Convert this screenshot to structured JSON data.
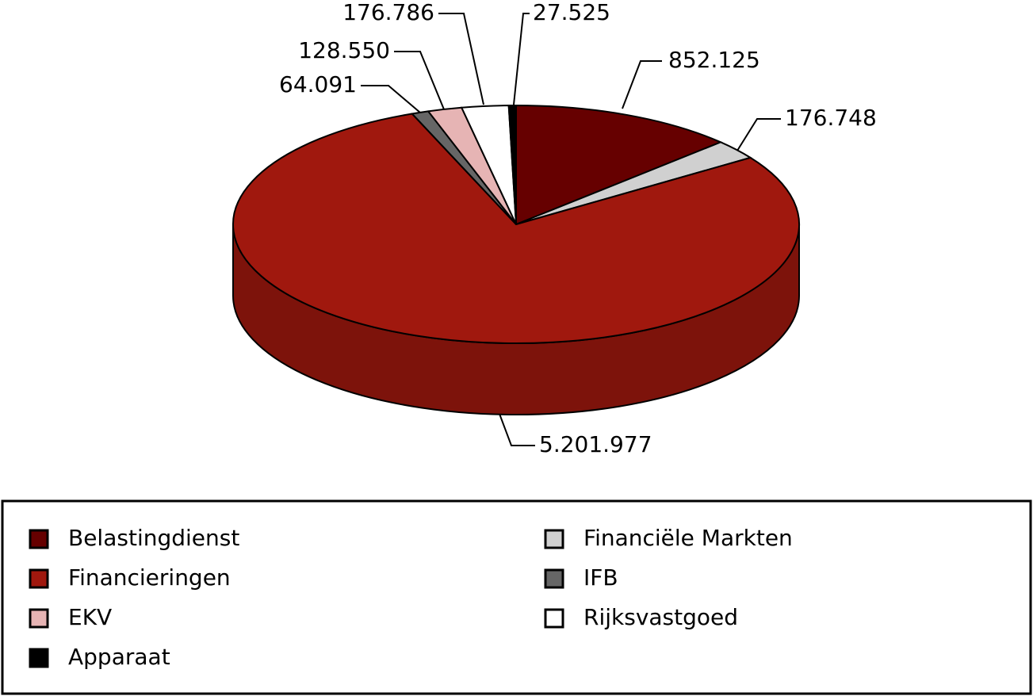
{
  "chart_data": {
    "type": "pie",
    "categories": [
      "Belastingdienst",
      "Financiële Markten",
      "Financieringen",
      "IFB",
      "EKV",
      "Rijksvastgoed",
      "Apparaat"
    ],
    "values": [
      852125,
      176748,
      5201977,
      64091,
      128550,
      176786,
      27525
    ],
    "value_labels": [
      "852.125",
      "176.748",
      "5.201.977",
      "64.091",
      "128.550",
      "176.786",
      "27.525"
    ],
    "colors": [
      "#660000",
      "#d0d0d0",
      "#a0180e",
      "#666666",
      "#e6b4b4",
      "#ffffff",
      "#000000"
    ],
    "legend": "bottom"
  }
}
